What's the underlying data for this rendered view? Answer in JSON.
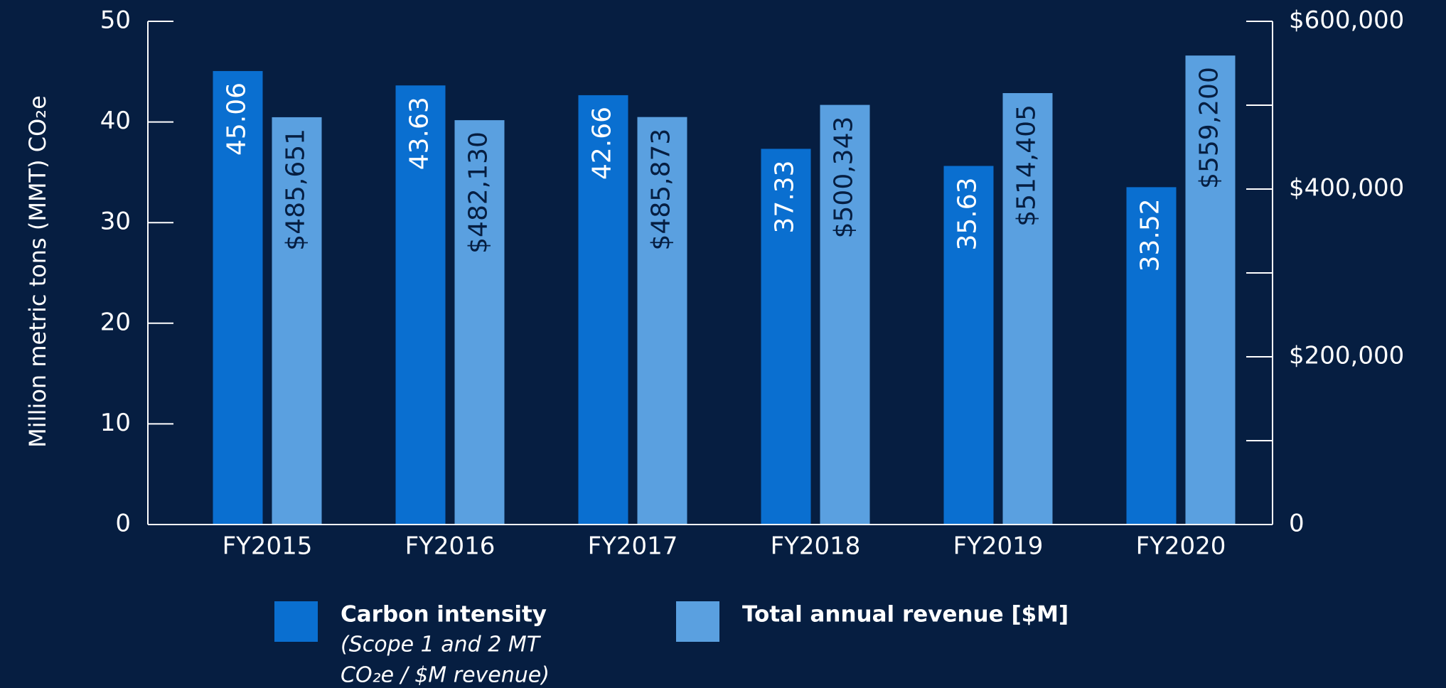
{
  "chart_data": {
    "type": "bar",
    "y_label": "Million metric tons (MMT) CO₂e",
    "categories": [
      "FY2015",
      "FY2016",
      "FY2017",
      "FY2018",
      "FY2019",
      "FY2020"
    ],
    "series": [
      {
        "name": "Carbon intensity",
        "note": [
          "(Scope 1 and 2 MT",
          "CO₂e / $M revenue)"
        ],
        "color": "#0a6fd0",
        "values": [
          45.06,
          43.63,
          42.66,
          37.33,
          35.63,
          33.52
        ]
      },
      {
        "name": "Total annual revenue [$M]",
        "color": "#5aa0e0",
        "axis": "y2",
        "values": [
          485651,
          482130,
          485873,
          500343,
          514405,
          559200
        ],
        "value_labels": [
          "$485,651",
          "$482,130",
          "$485,873",
          "$500,343",
          "$514,405",
          "$559,200"
        ]
      }
    ],
    "ylim": [
      0,
      50
    ],
    "yticks": [
      0,
      10,
      20,
      30,
      40,
      50
    ],
    "y2lim": [
      0,
      600000
    ],
    "y2ticks": [
      0,
      {
        "value": 200000,
        "label": "$200,000"
      },
      {
        "value": 400000,
        "label": "$400,000"
      },
      {
        "value": 600000,
        "label": "$600,000"
      }
    ],
    "y2minor_ticks": [
      100000,
      300000,
      500000
    ]
  }
}
